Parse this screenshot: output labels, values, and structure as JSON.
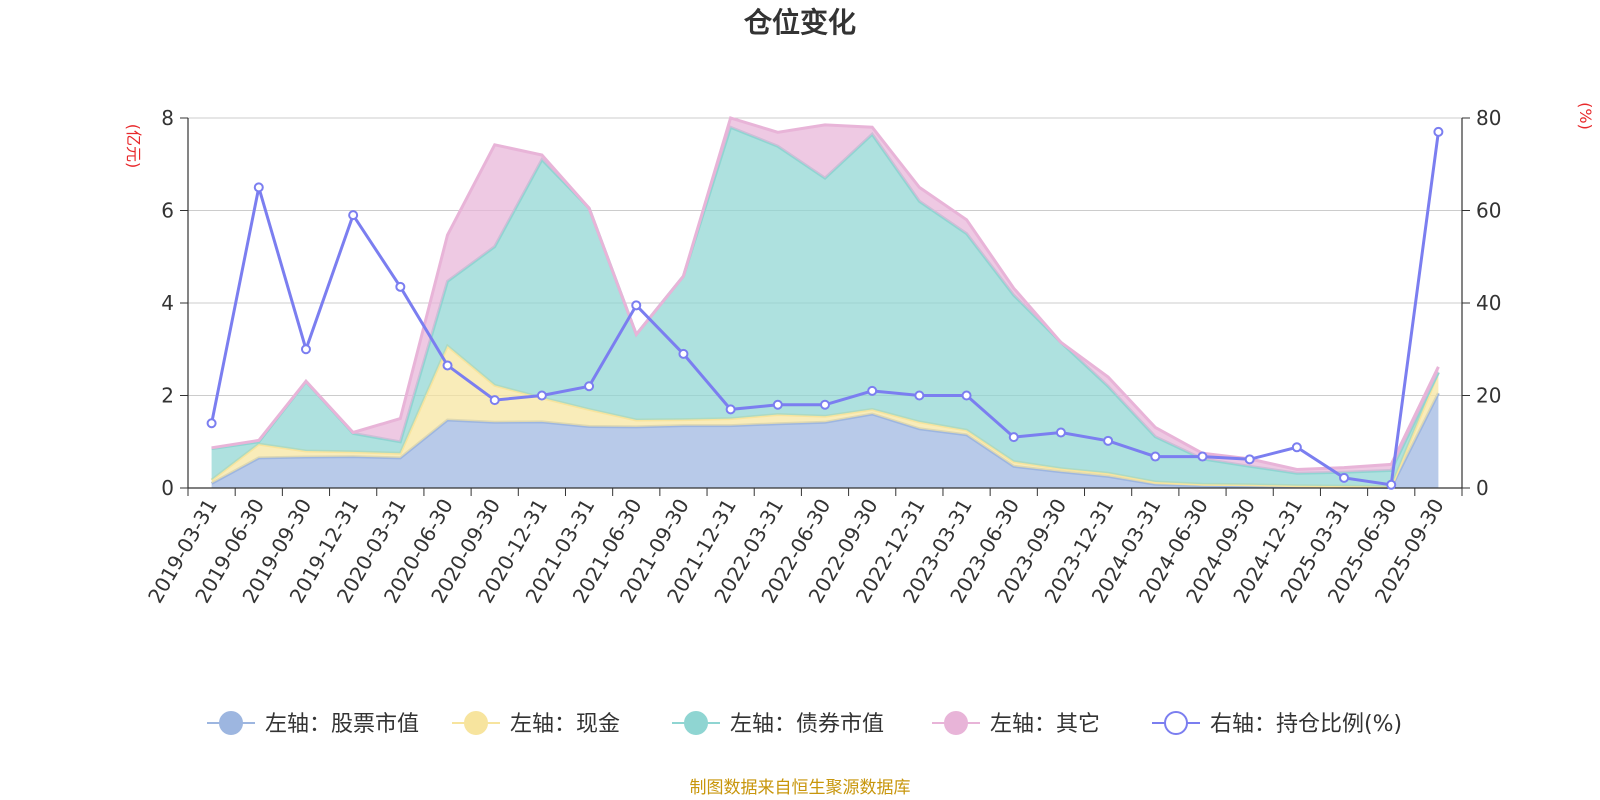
{
  "chart_data": {
    "type": "area",
    "title": "仓位变化",
    "left_axis_unit": "(亿元)",
    "right_axis_unit": "(%)",
    "left_ylim": [
      0,
      8
    ],
    "left_ticks": [
      "0",
      "2",
      "4",
      "6",
      "8"
    ],
    "right_ylim": [
      0,
      80
    ],
    "right_ticks": [
      "0",
      "20",
      "40",
      "60",
      "80"
    ],
    "grid": true,
    "legend_position": "bottom",
    "categories": [
      "2019-03-31",
      "2019-06-30",
      "2019-09-30",
      "2019-12-31",
      "2020-03-31",
      "2020-06-30",
      "2020-09-30",
      "2020-12-31",
      "2021-03-31",
      "2021-06-30",
      "2021-09-30",
      "2021-12-31",
      "2022-03-31",
      "2022-06-30",
      "2022-09-30",
      "2022-12-31",
      "2023-03-31",
      "2023-06-30",
      "2023-09-30",
      "2023-12-31",
      "2024-03-31",
      "2024-06-30",
      "2024-09-30",
      "2024-12-31",
      "2025-03-31",
      "2025-06-30",
      "2025-09-30"
    ],
    "stacked_series": [
      {
        "name": "左轴：股票市值",
        "color": "#9db6e0",
        "values": [
          0.1,
          0.65,
          0.67,
          0.68,
          0.65,
          1.47,
          1.42,
          1.43,
          1.33,
          1.32,
          1.35,
          1.35,
          1.39,
          1.42,
          1.6,
          1.28,
          1.15,
          0.47,
          0.35,
          0.25,
          0.08,
          0.05,
          0.04,
          0.03,
          0.02,
          0.01,
          2.05
        ]
      },
      {
        "name": "左轴：现金",
        "color": "#f7e49e",
        "values": [
          0.07,
          0.3,
          0.13,
          0.1,
          0.1,
          1.6,
          0.8,
          0.52,
          0.37,
          0.15,
          0.13,
          0.15,
          0.2,
          0.13,
          0.1,
          0.15,
          0.1,
          0.1,
          0.07,
          0.07,
          0.05,
          0.03,
          0.03,
          0.02,
          0.02,
          0.02,
          0.45
        ]
      },
      {
        "name": "左轴：债券市值",
        "color": "#8fd5d2",
        "values": [
          0.68,
          0.05,
          1.5,
          0.4,
          0.25,
          1.4,
          3.0,
          5.15,
          4.35,
          1.85,
          3.1,
          6.3,
          5.8,
          5.15,
          5.95,
          4.77,
          4.25,
          3.6,
          2.73,
          1.88,
          0.98,
          0.55,
          0.4,
          0.27,
          0.3,
          0.35,
          0.0
        ]
      },
      {
        "name": "左轴：其它",
        "color": "#e8b4d8",
        "values": [
          0.02,
          0.03,
          0.01,
          0.02,
          0.5,
          1.0,
          2.2,
          0.1,
          0.0,
          0.0,
          0.0,
          0.2,
          0.3,
          1.15,
          0.15,
          0.3,
          0.3,
          0.15,
          0.0,
          0.2,
          0.2,
          0.12,
          0.16,
          0.08,
          0.1,
          0.13,
          0.12
        ]
      }
    ],
    "line_series": {
      "name": "右轴：持仓比例(%)",
      "color": "#7b7ef0",
      "values": [
        14,
        65,
        30,
        59,
        43.5,
        26.5,
        19,
        20,
        22,
        39.5,
        29,
        17,
        18,
        18,
        21,
        20,
        20,
        11,
        12,
        10.2,
        6.8,
        6.8,
        6.2,
        8.8,
        2.2,
        0.7,
        77
      ]
    },
    "source_note": "制图数据来自恒生聚源数据库"
  }
}
